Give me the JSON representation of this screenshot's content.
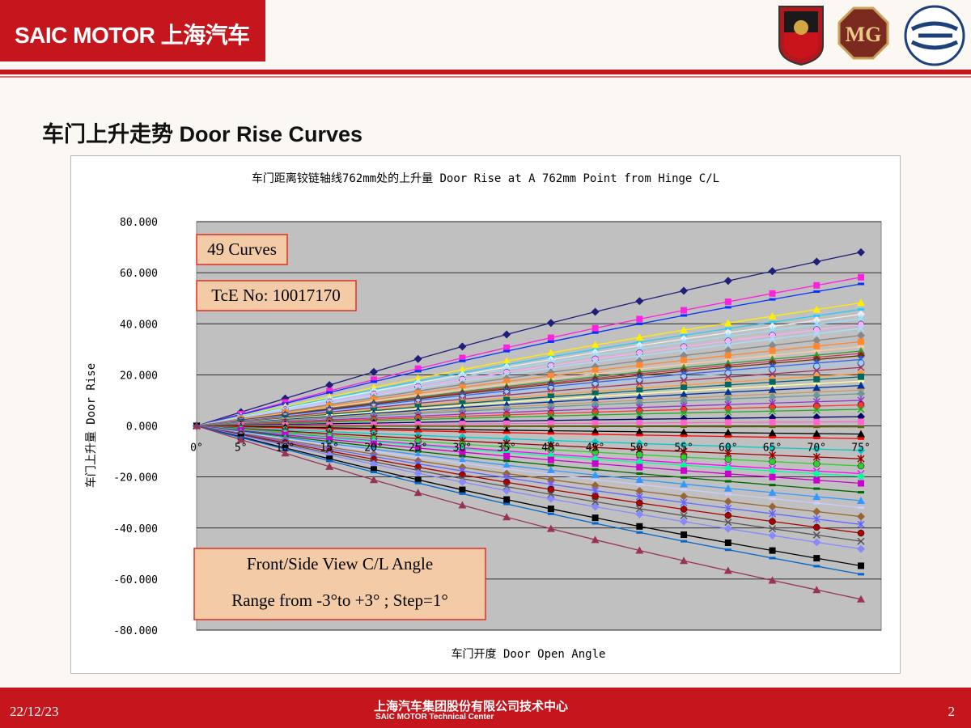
{
  "header": {
    "brand": "SAIC MOTOR 上海汽车",
    "logos": [
      "roewe-logo",
      "mg-logo",
      "saic-logo"
    ]
  },
  "slide": {
    "title": "车门上升走势   Door Rise Curves"
  },
  "chart_data": {
    "type": "line",
    "title": "车门距离铰链轴线762mm处的上升量 Door Rise at A 762mm Point from Hinge C/L",
    "xlabel": "车门开度 Door Open Angle",
    "ylabel": "车门上升量 Door Rise",
    "x": [
      0,
      5,
      10,
      15,
      20,
      25,
      30,
      35,
      40,
      45,
      50,
      55,
      60,
      65,
      70,
      75
    ],
    "xtick_labels": [
      "0°",
      "5°",
      "10°",
      "15°",
      "20°",
      "25°",
      "30°",
      "35°",
      "40°",
      "45°",
      "50°",
      "55°",
      "60°",
      "65°",
      "70°",
      "75°"
    ],
    "ylim": [
      -80,
      80
    ],
    "yticks": [
      "80.000",
      "60.000",
      "40.000",
      "20.000",
      "0.000",
      "-20.000",
      "-40.000",
      "-60.000",
      "-80.000"
    ],
    "plot_background": "#c0c0c0",
    "grid": "horizontal",
    "series_count": 49,
    "series_final_values": [
      68.0,
      58.2,
      55.6,
      48.2,
      45.6,
      43.7,
      42.0,
      39.8,
      38.2,
      35.4,
      33.0,
      31.0,
      29.3,
      28.4,
      27.5,
      26.0,
      24.6,
      22.9,
      20.5,
      19.2,
      17.5,
      15.8,
      14.0,
      12.6,
      10.0,
      8.2,
      6.5,
      3.6,
      1.6,
      -0.4,
      -3.2,
      -5.0,
      -9.6,
      -12.9,
      -15.7,
      -18.7,
      -19.8,
      -22.5,
      -26.0,
      -29.3,
      -32.0,
      -35.5,
      -38.6,
      -42.0,
      -45.2,
      -48.2,
      -54.8,
      -58.1,
      -67.9
    ],
    "annotations": [
      "49 Curves",
      "TcE No: 10017170",
      "Front/Side View C/L Angle",
      "Range from -3°to +3° ;   Step=1°"
    ]
  },
  "footer": {
    "date": "22/12/23",
    "org_cn": "上海汽车集团股份有限公司技术中心",
    "org_en": "SAIC MOTOR Technical Center",
    "page": "2"
  }
}
